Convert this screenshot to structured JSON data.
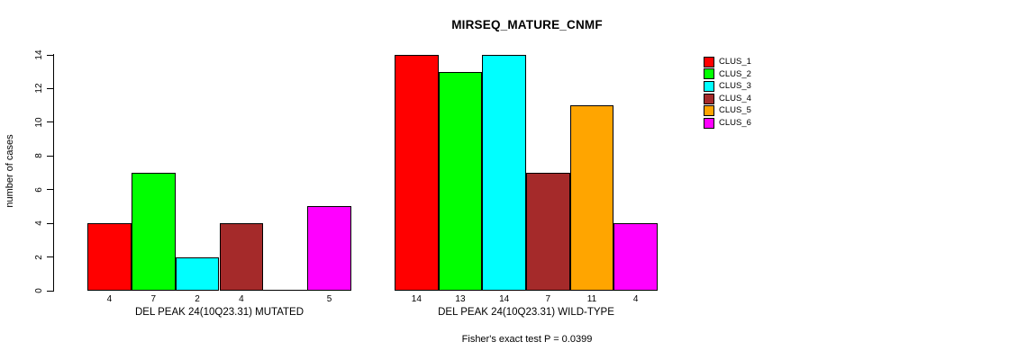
{
  "chart_data": {
    "type": "bar",
    "title": "MIRSEQ_MATURE_CNMF",
    "ylabel": "number of cases",
    "ylim": [
      0,
      14
    ],
    "yticks": [
      0,
      2,
      4,
      6,
      8,
      10,
      12,
      14
    ],
    "grid": false,
    "legend_position": "top-right",
    "categories": [
      "DEL PEAK 24(10Q23.31) MUTATED",
      "DEL PEAK 24(10Q23.31) WILD-TYPE"
    ],
    "series": [
      {
        "name": "CLUS_1",
        "color": "#ff0000",
        "values": [
          4,
          14
        ]
      },
      {
        "name": "CLUS_2",
        "color": "#00ff00",
        "values": [
          7,
          13
        ]
      },
      {
        "name": "CLUS_3",
        "color": "#00ffff",
        "values": [
          2,
          14
        ]
      },
      {
        "name": "CLUS_4",
        "color": "#a52a2a",
        "values": [
          4,
          7
        ]
      },
      {
        "name": "CLUS_5",
        "color": "#ffa500",
        "values": [
          0,
          11
        ]
      },
      {
        "name": "CLUS_6",
        "color": "#ff00ff",
        "values": [
          5,
          4
        ]
      }
    ],
    "bar_value_labels": [
      [
        "4",
        "7",
        "2",
        "4",
        "",
        "5"
      ],
      [
        "14",
        "13",
        "14",
        "7",
        "11",
        "4"
      ]
    ],
    "annotation": "Fisher's exact test P = 0.0399"
  }
}
